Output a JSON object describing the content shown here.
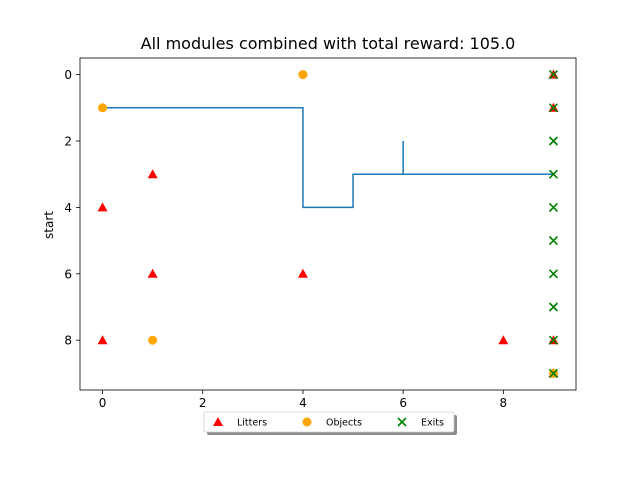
{
  "chart_data": {
    "type": "scatter",
    "title": "All modules combined with total reward: 105.0",
    "xlabel": "",
    "ylabel": "start",
    "xlim": [
      -0.45,
      9.45
    ],
    "ylim": [
      9.5,
      -0.5
    ],
    "y_inverted": true,
    "xticks": [
      0,
      2,
      4,
      6,
      8
    ],
    "yticks": [
      0,
      2,
      4,
      6,
      8
    ],
    "grid": false,
    "legend_position": "bottom-center",
    "series": [
      {
        "name": "Litters",
        "marker": "triangle",
        "color": "#ff0000",
        "points": [
          [
            9,
            0
          ],
          [
            9,
            1
          ],
          [
            1,
            3
          ],
          [
            0,
            4
          ],
          [
            1,
            6
          ],
          [
            4,
            6
          ],
          [
            0,
            8
          ],
          [
            8,
            8
          ],
          [
            9,
            8
          ],
          [
            9,
            9
          ]
        ]
      },
      {
        "name": "Objects",
        "marker": "circle",
        "color": "#ffa500",
        "points": [
          [
            4,
            0
          ],
          [
            0,
            1
          ],
          [
            1,
            8
          ],
          [
            9,
            9
          ]
        ]
      },
      {
        "name": "Exits",
        "marker": "x",
        "color": "#008000",
        "points": [
          [
            9,
            0
          ],
          [
            9,
            1
          ],
          [
            9,
            2
          ],
          [
            9,
            3
          ],
          [
            9,
            4
          ],
          [
            9,
            5
          ],
          [
            9,
            6
          ],
          [
            9,
            7
          ],
          [
            9,
            8
          ],
          [
            9,
            9
          ]
        ]
      }
    ],
    "path": {
      "color": "#1f77b4",
      "points": [
        [
          0,
          1
        ],
        [
          4,
          1
        ],
        [
          4,
          4
        ],
        [
          5,
          4
        ],
        [
          5,
          3
        ],
        [
          6,
          3
        ],
        [
          6,
          2
        ],
        [
          6,
          3
        ],
        [
          9,
          3
        ]
      ]
    }
  }
}
